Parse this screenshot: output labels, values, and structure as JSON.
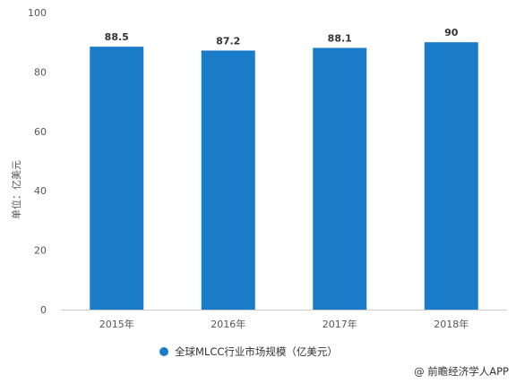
{
  "chart_data": {
    "type": "bar",
    "categories": [
      "2015年",
      "2016年",
      "2017年",
      "2018年"
    ],
    "series": [
      {
        "name": "全球MLCC行业市场规模（亿美元）",
        "values": [
          88.5,
          87.2,
          88.1,
          90
        ]
      }
    ],
    "data_labels": [
      "88.5",
      "87.2",
      "88.1",
      "90"
    ],
    "ylabel": "单位：亿美元",
    "ylim": [
      0,
      100
    ],
    "yticks": [
      0,
      20,
      40,
      60,
      80,
      100
    ],
    "grid": false,
    "legend_position": "bottom",
    "colors": {
      "bar": "#1a7bc9",
      "axis": "#cccccc",
      "text": "#555555"
    }
  },
  "legend": {
    "label": "全球MLCC行业市场规模（亿美元）"
  },
  "watermark": {
    "text": "@ 前瞻经济学人APP"
  }
}
